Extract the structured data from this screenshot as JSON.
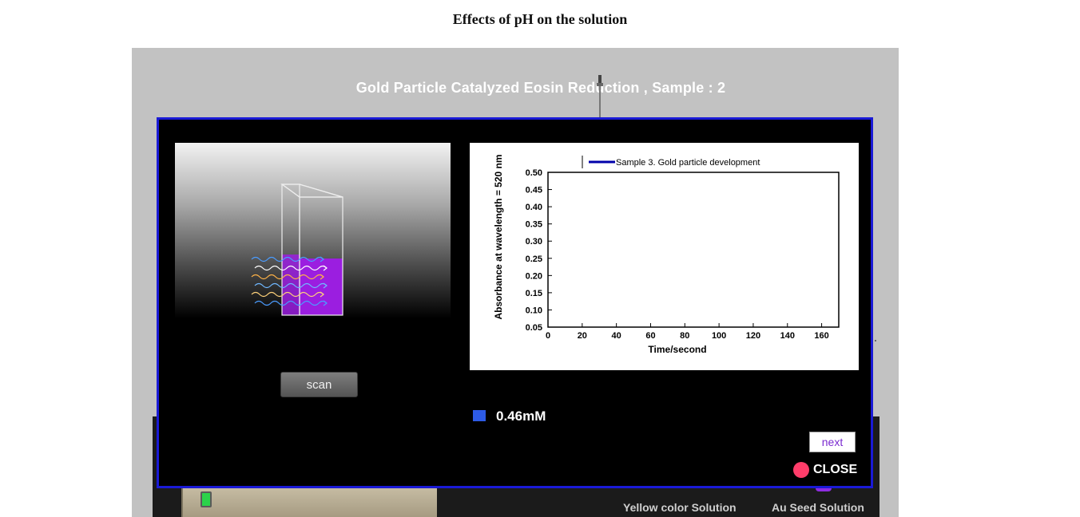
{
  "page": {
    "title": "Effects of pH on the solution"
  },
  "simulation": {
    "heading": "Gold Particle Catalyzed Eosin Reduction , Sample : 2",
    "bench_labels": [
      "Yellow color Solution",
      "Au Seed Solution"
    ]
  },
  "modal": {
    "scan_label": "scan",
    "concentration_label": "0.46mM",
    "next_label": "next",
    "close_label": "CLOSE",
    "solution_color": "#9b1ee0",
    "legend_color": "#2d5be6"
  },
  "chart_data": {
    "type": "line",
    "series": [
      {
        "name": "Sample 3. Gold particle development",
        "values": [],
        "color": "#0000aa"
      }
    ],
    "xlabel": "Time/second",
    "ylabel": "Absorbance at wavelength = 520 nm",
    "xlim": [
      0,
      170
    ],
    "ylim": [
      0.05,
      0.5
    ],
    "x_ticks": [
      "0",
      "20",
      "40",
      "60",
      "80",
      "100",
      "120",
      "140",
      "160"
    ],
    "y_ticks": [
      "0.05",
      "0.10",
      "0.15",
      "0.20",
      "0.25",
      "0.30",
      "0.35",
      "0.40",
      "0.45",
      "0.50"
    ],
    "grid": false,
    "legend_position": "top"
  }
}
